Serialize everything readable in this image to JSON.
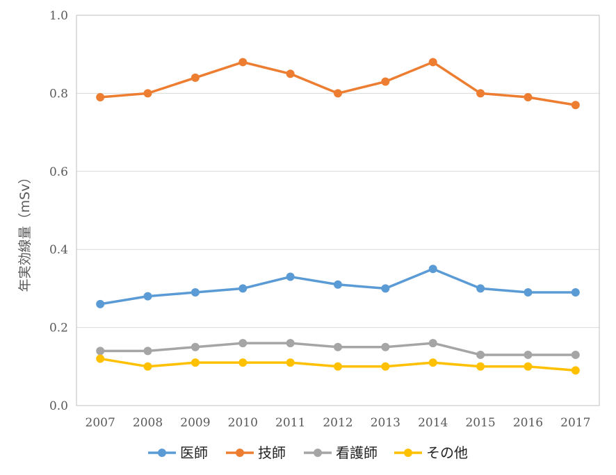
{
  "chart_data": {
    "type": "line",
    "title": "",
    "xlabel": "",
    "ylabel": "年実効線量（mSv）",
    "ylim": [
      0.0,
      1.0
    ],
    "yticks": [
      "0.0",
      "0.2",
      "0.4",
      "0.6",
      "0.8",
      "1.0"
    ],
    "categories": [
      "2007",
      "2008",
      "2009",
      "2010",
      "2011",
      "2012",
      "2013",
      "2014",
      "2015",
      "2016",
      "2017"
    ],
    "grid": "horizontal",
    "legend_position": "bottom",
    "series": [
      {
        "name": "医師",
        "color": "#5B9BD5",
        "values": [
          0.26,
          0.28,
          0.29,
          0.3,
          0.33,
          0.31,
          0.3,
          0.35,
          0.3,
          0.29,
          0.29
        ]
      },
      {
        "name": "技師",
        "color": "#ED7D31",
        "values": [
          0.79,
          0.8,
          0.84,
          0.88,
          0.85,
          0.8,
          0.83,
          0.88,
          0.8,
          0.79,
          0.77
        ]
      },
      {
        "name": "看護師",
        "color": "#A5A5A5",
        "values": [
          0.14,
          0.14,
          0.15,
          0.16,
          0.16,
          0.15,
          0.15,
          0.16,
          0.13,
          0.13,
          0.13
        ]
      },
      {
        "name": "その他",
        "color": "#FFC000",
        "values": [
          0.12,
          0.1,
          0.11,
          0.11,
          0.11,
          0.1,
          0.1,
          0.11,
          0.1,
          0.1,
          0.09
        ]
      }
    ]
  }
}
